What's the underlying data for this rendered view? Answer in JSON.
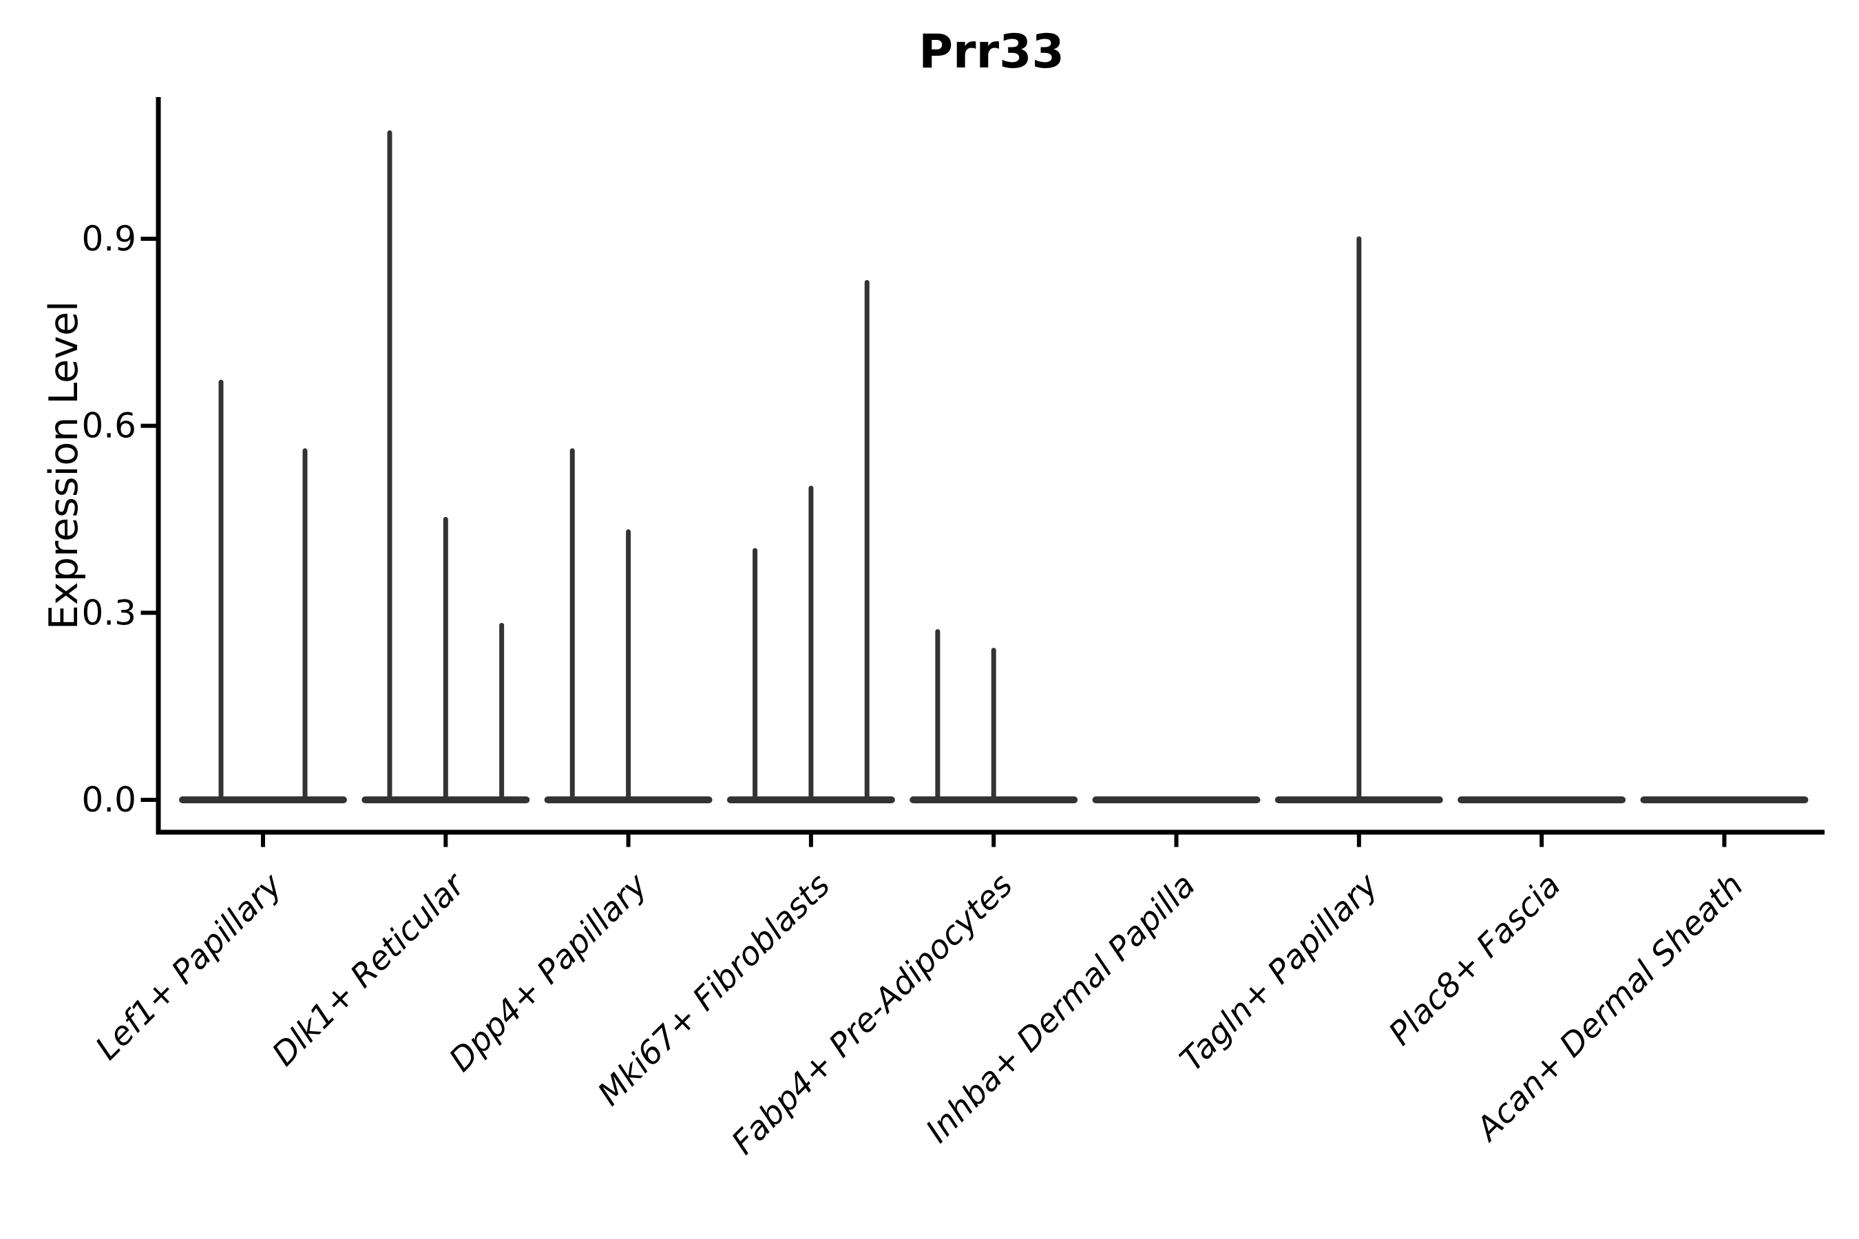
{
  "figure": {
    "title": "Prr33",
    "ylabel": "Expression Level"
  },
  "chart_data": {
    "type": "violin",
    "title": "Prr33",
    "xlabel": "",
    "ylabel": "Expression Level",
    "grid": false,
    "legend": "none",
    "yticks": [
      0.0,
      0.3,
      0.6,
      0.9
    ],
    "ytick_labels": [
      "0.0",
      "0.3",
      "0.6",
      "0.9"
    ],
    "ylim": [
      -0.05,
      1.13
    ],
    "categories": [
      "Lef1+ Papillary",
      "Dlk1+ Reticular",
      "Dpp4+ Papillary",
      "Mki67+ Fibroblasts",
      "Fabp4+ Pre-Adipocytes",
      "Inhba+ Dermal Papilla",
      "Tagln+ Papillary",
      "Plac8+ Fascia",
      "Acan+ Dermal Sheath"
    ],
    "groups": [
      {
        "label": "Lef1+ Papillary",
        "violins": [
          {
            "max": 0.67
          },
          {
            "max": 0.56
          }
        ]
      },
      {
        "label": "Dlk1+ Reticular",
        "violins": [
          {
            "max": 1.07
          },
          {
            "max": 0.45
          },
          {
            "max": 0.28
          }
        ]
      },
      {
        "label": "Dpp4+ Papillary",
        "violins": [
          {
            "max": 0.56
          },
          {
            "max": 0.43
          },
          {
            "max": 0
          }
        ]
      },
      {
        "label": "Mki67+ Fibroblasts",
        "violins": [
          {
            "max": 0.4
          },
          {
            "max": 0.5
          },
          {
            "max": 0.83
          }
        ]
      },
      {
        "label": "Fabp4+ Pre-Adipocytes",
        "violins": [
          {
            "max": 0.27
          },
          {
            "max": 0.24
          },
          {
            "max": 0
          }
        ]
      },
      {
        "label": "Inhba+ Dermal Papilla",
        "violins": [
          {
            "max": 0
          },
          {
            "max": 0
          },
          {
            "max": 0
          }
        ]
      },
      {
        "label": "Tagln+ Papillary",
        "violins": [
          {
            "max": 0.9
          }
        ]
      },
      {
        "label": "Plac8+ Fascia",
        "violins": [
          {
            "max": 0
          },
          {
            "max": 0
          },
          {
            "max": 0
          }
        ]
      },
      {
        "label": "Acan+ Dermal Sheath",
        "violins": [
          {
            "max": 0
          },
          {
            "max": 0
          },
          {
            "max": 0
          }
        ]
      }
    ],
    "colors": {
      "violin": "#333333",
      "axis": "#000000",
      "text": "#000000",
      "background": "#ffffff"
    }
  }
}
